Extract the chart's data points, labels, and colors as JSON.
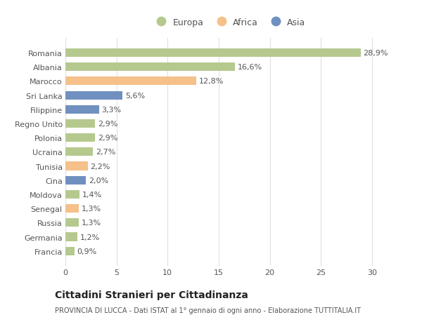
{
  "categories": [
    "Francia",
    "Germania",
    "Russia",
    "Senegal",
    "Moldova",
    "Cina",
    "Tunisia",
    "Ucraina",
    "Polonia",
    "Regno Unito",
    "Filippine",
    "Sri Lanka",
    "Marocco",
    "Albania",
    "Romania"
  ],
  "values": [
    0.9,
    1.2,
    1.3,
    1.3,
    1.4,
    2.0,
    2.2,
    2.7,
    2.9,
    2.9,
    3.3,
    5.6,
    12.8,
    16.6,
    28.9
  ],
  "colors": [
    "#b5c98e",
    "#b5c98e",
    "#b5c98e",
    "#f5c08a",
    "#b5c98e",
    "#7090c0",
    "#f5c08a",
    "#b5c98e",
    "#b5c98e",
    "#b5c98e",
    "#7090c0",
    "#7090c0",
    "#f5c08a",
    "#b5c98e",
    "#b5c98e"
  ],
  "labels": [
    "0,9%",
    "1,2%",
    "1,3%",
    "1,3%",
    "1,4%",
    "2,0%",
    "2,2%",
    "2,7%",
    "2,9%",
    "2,9%",
    "3,3%",
    "5,6%",
    "12,8%",
    "16,6%",
    "28,9%"
  ],
  "legend": [
    {
      "label": "Europa",
      "color": "#b5c98e"
    },
    {
      "label": "Africa",
      "color": "#f5c08a"
    },
    {
      "label": "Asia",
      "color": "#7090c0"
    }
  ],
  "title": "Cittadini Stranieri per Cittadinanza",
  "subtitle": "PROVINCIA DI LUCCA - Dati ISTAT al 1° gennaio di ogni anno - Elaborazione TUTTITALIA.IT",
  "xlim": [
    0,
    32
  ],
  "xticks": [
    0,
    5,
    10,
    15,
    20,
    25,
    30
  ],
  "background_color": "#ffffff",
  "grid_color": "#e0e0e0",
  "bar_height": 0.6,
  "label_fontsize": 8,
  "ytick_fontsize": 8,
  "xtick_fontsize": 8
}
